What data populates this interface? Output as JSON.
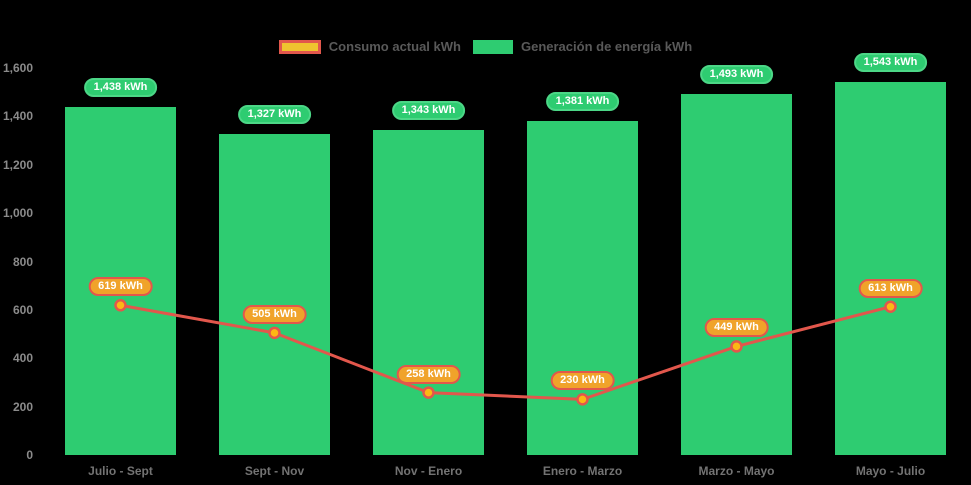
{
  "chart_data": {
    "type": "bar",
    "title": "",
    "categories": [
      "Julio - Sept",
      "Sept - Nov",
      "Nov - Enero",
      "Enero - Marzo",
      "Marzo - Mayo",
      "Mayo - Julio"
    ],
    "series": [
      {
        "name": "Consumo actual kWh",
        "type": "line",
        "color": "#e2574c",
        "marker_fill": "#fdb714",
        "label_bg": "#f0a32a",
        "values": [
          619,
          505,
          258,
          230,
          449,
          613
        ]
      },
      {
        "name": "Generación de energía kWh",
        "type": "bar",
        "color": "#2ecc71",
        "values": [
          1438,
          1327,
          1343,
          1381,
          1493,
          1543
        ]
      }
    ],
    "value_suffix": " kWh",
    "y_ticks": [
      0,
      200,
      400,
      600,
      800,
      1000,
      1200,
      1400,
      1600
    ],
    "y_tick_labels": [
      "0",
      "200",
      "400",
      "600",
      "800",
      "1,000",
      "1,200",
      "1,400",
      "1,600"
    ],
    "ylim": [
      0,
      1600
    ],
    "xlabel": "",
    "ylabel": "",
    "grid": false,
    "legend_position": "top",
    "data_labels": {
      "bar_labels": [
        "1,438 kWh",
        "1,327 kWh",
        "1,343 kWh",
        "1,381 kWh",
        "1,493 kWh",
        "1,543 kWh"
      ],
      "line_labels": [
        "619 kWh",
        "505 kWh",
        "258 kWh",
        "230 kWh",
        "449 kWh",
        "613 kWh"
      ]
    },
    "colors": {
      "bar": "#2ecc71",
      "bar_pill_border": "#4cd787",
      "line": "#e2574c",
      "marker_fill": "#fdb714",
      "line_pill_bg": "#f0a32a",
      "legend_consumo_fill": "#efc32f",
      "legend_consumo_border": "#e2574c",
      "axis_text": "#8b8b8b"
    }
  },
  "legend": {
    "items": [
      {
        "label": "Consumo actual kWh"
      },
      {
        "label": "Generación de energía kWh"
      }
    ]
  }
}
